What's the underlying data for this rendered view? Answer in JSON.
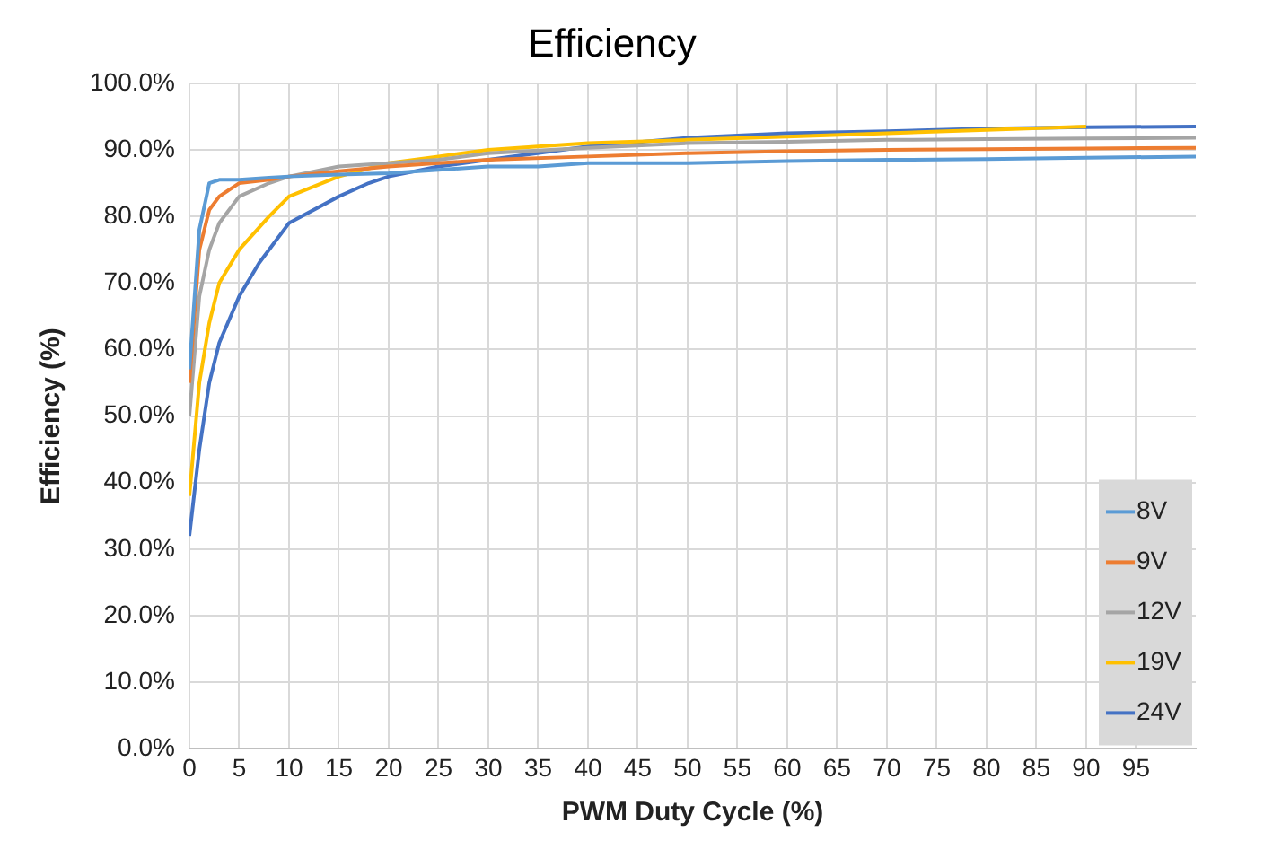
{
  "chart_data": {
    "type": "line",
    "title": "Efficiency",
    "xlabel": "PWM Duty Cycle (%)",
    "ylabel": "Efficiency (%)",
    "xlim": [
      0,
      101
    ],
    "xticks": [
      0,
      5,
      10,
      15,
      20,
      25,
      30,
      35,
      40,
      45,
      50,
      55,
      60,
      65,
      70,
      75,
      80,
      85,
      90,
      95
    ],
    "ylim": [
      0,
      100
    ],
    "yticks": [
      {
        "value": 0,
        "label": "0.0%"
      },
      {
        "value": 10,
        "label": "10.0%"
      },
      {
        "value": 20,
        "label": "20.0%"
      },
      {
        "value": 30,
        "label": "30.0%"
      },
      {
        "value": 40,
        "label": "40.0%"
      },
      {
        "value": 50,
        "label": "50.0%"
      },
      {
        "value": 60,
        "label": "60.0%"
      },
      {
        "value": 70,
        "label": "70.0%"
      },
      {
        "value": 80,
        "label": "80.0%"
      },
      {
        "value": 90,
        "label": "90.0%"
      },
      {
        "value": 100,
        "label": "100.0%"
      }
    ],
    "grid": true,
    "legend": "right",
    "marker": "none",
    "line_style": "solid",
    "series": [
      {
        "name": "8V",
        "color": "#5b9bd5",
        "x": [
          0,
          1,
          2,
          3,
          5,
          8,
          10,
          15,
          20,
          25,
          30,
          35,
          40,
          50,
          60,
          70,
          80,
          90,
          101
        ],
        "values": [
          57,
          78,
          85,
          85.5,
          85.5,
          85.8,
          86,
          86.3,
          86.5,
          87,
          87.5,
          87.5,
          88,
          88,
          88.3,
          88.5,
          88.6,
          88.8,
          89
        ]
      },
      {
        "name": "9V",
        "color": "#ed7d31",
        "x": [
          0,
          1,
          2,
          3,
          5,
          8,
          10,
          15,
          20,
          25,
          30,
          40,
          50,
          60,
          70,
          80,
          90,
          101
        ],
        "values": [
          55,
          75,
          81,
          83,
          85,
          85.5,
          86,
          86.8,
          87.5,
          88,
          88.5,
          89,
          89.5,
          89.8,
          90,
          90.1,
          90.2,
          90.3
        ]
      },
      {
        "name": "12V",
        "color": "#a5a5a5",
        "x": [
          0,
          1,
          2,
          3,
          5,
          8,
          10,
          15,
          20,
          25,
          30,
          40,
          50,
          60,
          70,
          80,
          90,
          101
        ],
        "values": [
          50,
          68,
          75,
          79,
          83,
          85,
          86,
          87.5,
          88,
          88.5,
          89.5,
          90.3,
          91,
          91.2,
          91.5,
          91.6,
          91.7,
          91.8
        ]
      },
      {
        "name": "19V",
        "color": "#ffc000",
        "x": [
          0,
          1,
          2,
          3,
          5,
          8,
          10,
          15,
          20,
          25,
          30,
          40,
          50,
          60,
          70,
          80,
          90
        ],
        "values": [
          38,
          55,
          64,
          70,
          75,
          80,
          83,
          86,
          88,
          89,
          90,
          91,
          91.5,
          92,
          92.5,
          93,
          93.5
        ]
      },
      {
        "name": "24V",
        "color": "#4472c4",
        "x": [
          0,
          1,
          2,
          3,
          5,
          7,
          10,
          15,
          18,
          20,
          25,
          30,
          40,
          50,
          60,
          70,
          80,
          90,
          101
        ],
        "values": [
          32,
          45,
          55,
          61,
          68,
          73,
          79,
          83,
          85,
          86,
          87.5,
          88.5,
          90.5,
          91.8,
          92.5,
          92.8,
          93.2,
          93.4,
          93.5
        ]
      }
    ]
  }
}
